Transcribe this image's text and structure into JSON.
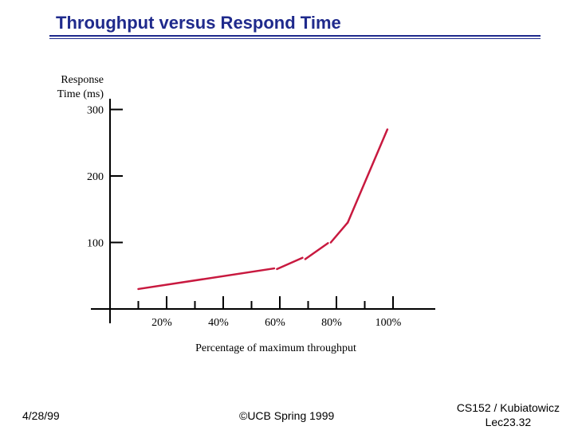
{
  "slide": {
    "title": "Throughput versus Respond Time",
    "footer_left": "4/28/99",
    "footer_center": "©UCB Spring 1999",
    "footer_right_line1": "CS152 / Kubiatowicz",
    "footer_right_line2": "Lec23.32"
  },
  "colors": {
    "title": "#1f2a8c",
    "series": "#c8193f"
  },
  "chart_data": {
    "type": "line",
    "ylabel": "Response Time (ms)",
    "ylabel_lines": [
      "Response",
      "Time (ms)"
    ],
    "xlabel": "Percentage of maximum throughput",
    "y_ticks": [
      100,
      200,
      300
    ],
    "y_tick_labels": [
      "100",
      "200",
      "300"
    ],
    "x_tick_labels": [
      "20%",
      "40%",
      "60%",
      "80%",
      "100%"
    ],
    "x_tick_label_values": [
      20,
      40,
      60,
      80,
      100
    ],
    "x_minor_ticks": [
      10,
      30,
      50,
      70,
      90
    ],
    "xlim": [
      0,
      110
    ],
    "ylim": [
      0,
      300
    ],
    "grid": false,
    "segments": [
      [
        [
          10,
          30
        ],
        [
          58,
          61
        ]
      ],
      [
        [
          59,
          60
        ],
        [
          68,
          77
        ]
      ],
      [
        [
          69,
          75
        ],
        [
          77,
          99
        ]
      ],
      [
        [
          78,
          100
        ],
        [
          84,
          130
        ]
      ],
      [
        [
          84,
          130
        ],
        [
          98,
          270
        ]
      ]
    ]
  }
}
